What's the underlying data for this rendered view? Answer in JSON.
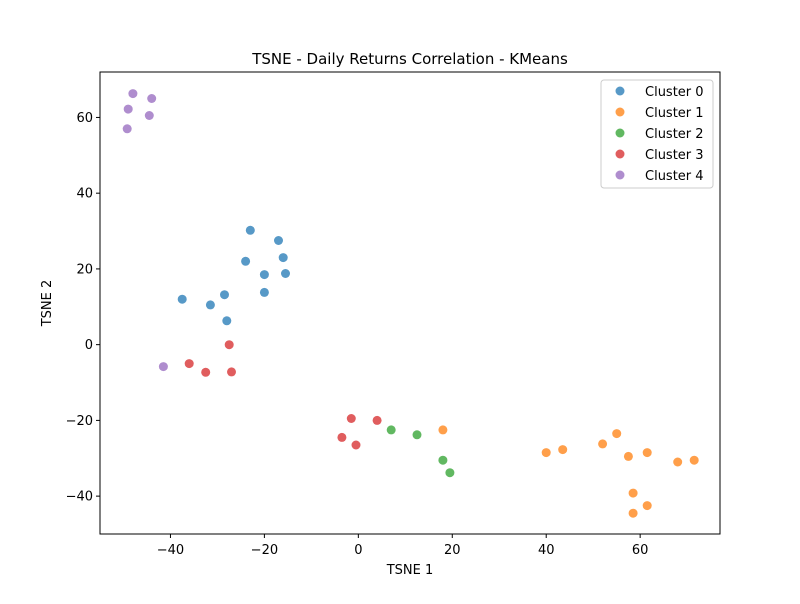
{
  "chart_data": {
    "type": "scatter",
    "title": "TSNE - Daily Returns Correlation - KMeans",
    "xlabel": "TSNE 1",
    "ylabel": "TSNE 2",
    "xlim": [
      -55,
      77
    ],
    "ylim": [
      -50,
      72
    ],
    "x_ticks": [
      -40,
      -20,
      0,
      20,
      40,
      60
    ],
    "y_ticks": [
      -40,
      -20,
      0,
      20,
      40,
      60
    ],
    "x_tick_labels": [
      "−40",
      "−20",
      "0",
      "20",
      "40",
      "60"
    ],
    "y_tick_labels": [
      "−40",
      "−20",
      "0",
      "20",
      "40",
      "60"
    ],
    "grid": false,
    "legend_position": "top-right",
    "series": [
      {
        "name": "Cluster 0",
        "color": "#1f77b4",
        "points": [
          [
            -23,
            30.2
          ],
          [
            -17,
            27.5
          ],
          [
            -24,
            22
          ],
          [
            -16,
            23
          ],
          [
            -20,
            18.5
          ],
          [
            -15.5,
            18.8
          ],
          [
            -20,
            13.8
          ],
          [
            -37.5,
            12
          ],
          [
            -31.5,
            10.5
          ],
          [
            -28.5,
            13.2
          ],
          [
            -28,
            6.3
          ]
        ]
      },
      {
        "name": "Cluster 1",
        "color": "#ff7f0e",
        "points": [
          [
            18,
            -22.5
          ],
          [
            40,
            -28.5
          ],
          [
            43.5,
            -27.7
          ],
          [
            52,
            -26.2
          ],
          [
            55,
            -23.5
          ],
          [
            57.5,
            -29.5
          ],
          [
            61.5,
            -28.5
          ],
          [
            68,
            -31
          ],
          [
            71.5,
            -30.5
          ],
          [
            58.5,
            -39.2
          ],
          [
            61.5,
            -42.5
          ],
          [
            58.5,
            -44.5
          ]
        ]
      },
      {
        "name": "Cluster 2",
        "color": "#2ca02c",
        "points": [
          [
            7,
            -22.5
          ],
          [
            12.5,
            -23.8
          ],
          [
            18,
            -30.5
          ],
          [
            19.5,
            -33.8
          ]
        ]
      },
      {
        "name": "Cluster 3",
        "color": "#d62728",
        "points": [
          [
            -27.5,
            0
          ],
          [
            -36,
            -5
          ],
          [
            -32.5,
            -7.3
          ],
          [
            -27,
            -7.2
          ],
          [
            -1.5,
            -19.5
          ],
          [
            4,
            -20
          ],
          [
            -3.5,
            -24.5
          ],
          [
            -0.5,
            -26.5
          ]
        ]
      },
      {
        "name": "Cluster 4",
        "color": "#9467bd",
        "points": [
          [
            -48,
            66.3
          ],
          [
            -44,
            65
          ],
          [
            -49,
            62.2
          ],
          [
            -44.5,
            60.5
          ],
          [
            -49.2,
            57
          ],
          [
            -41.5,
            -5.8
          ]
        ]
      }
    ]
  }
}
